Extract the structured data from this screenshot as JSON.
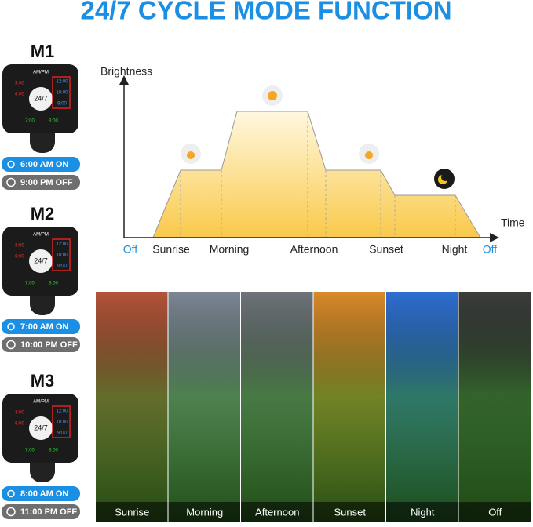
{
  "title": "24/7 CYCLE MODE FUNCTION",
  "modes": [
    {
      "name": "M1",
      "on": "6:00 AM ON",
      "off": "9:00 PM OFF"
    },
    {
      "name": "M2",
      "on": "7:00 AM ON",
      "off": "10:00 PM OFF"
    },
    {
      "name": "M3",
      "on": "8:00 AM ON",
      "off": "11:00 PM OFF"
    }
  ],
  "controller": {
    "ampm": "AM/PM",
    "center": "24/7",
    "left": [
      "3:00",
      "6:00"
    ],
    "right": [
      "12:00",
      "10:00",
      "9:00"
    ],
    "bottom": [
      "7:00",
      "8:00"
    ]
  },
  "diagram": {
    "y_label": "Brightness",
    "x_label": "Time",
    "phases": [
      "Off",
      "Sunrise",
      "Morning",
      "Afternoon",
      "Sunset",
      "Night",
      "Off"
    ]
  },
  "panels": [
    "Sunrise",
    "Morning",
    "Afternoon",
    "Sunset",
    "Night",
    "Off"
  ]
}
